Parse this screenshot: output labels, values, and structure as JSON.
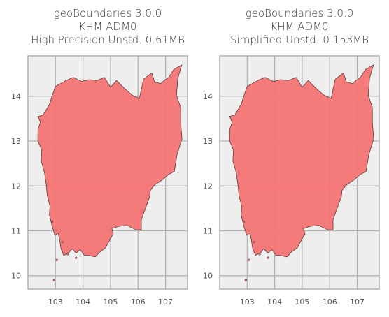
{
  "figure": {
    "panels": [
      {
        "title_lines": [
          "geoBoundaries 3.0.0",
          "KHM ADM0",
          "High Precision Unstd. 0.61MB"
        ],
        "xticks": [
          "103",
          "104",
          "105",
          "106",
          "107"
        ],
        "yticks": [
          "14",
          "13",
          "12",
          "11",
          "10"
        ]
      },
      {
        "title_lines": [
          "geoBoundaries 3.0.0",
          "KHM ADM0",
          "Simplified Unstd. 0.153MB"
        ],
        "xticks": [
          "103",
          "104",
          "105",
          "106",
          "107"
        ],
        "yticks": [
          "14",
          "13",
          "12",
          "11",
          "10"
        ]
      }
    ]
  },
  "colors": {
    "plot_background": "#eeeeee",
    "grid": "#b0b0b0",
    "frame": "#b0b0b0",
    "country_fill": "#f47373",
    "country_edge": "#5a3a3a",
    "title_text": "#3a3a3a",
    "tick_text": "#555555"
  },
  "chart_data": [
    {
      "type": "map",
      "title": "geoBoundaries 3.0.0 KHM ADM0 High Precision Unstd. 0.61MB",
      "xlim": [
        102.0,
        107.8
      ],
      "ylim": [
        9.7,
        14.9
      ],
      "x_ticks": [
        103,
        104,
        105,
        106,
        107
      ],
      "y_ticks": [
        10,
        11,
        12,
        13,
        14
      ],
      "grid": true,
      "series": [
        {
          "name": "KHM ADM0",
          "kind": "polygon",
          "mainland_lonlat": [
            [
              102.36,
              13.55
            ],
            [
              102.45,
              13.42
            ],
            [
              102.36,
              13.25
            ],
            [
              102.36,
              13.0
            ],
            [
              102.5,
              12.8
            ],
            [
              102.48,
              12.55
            ],
            [
              102.6,
              12.3
            ],
            [
              102.67,
              12.0
            ],
            [
              102.7,
              11.8
            ],
            [
              102.8,
              11.55
            ],
            [
              102.78,
              11.35
            ],
            [
              102.88,
              11.1
            ],
            [
              102.98,
              10.9
            ],
            [
              103.1,
              10.95
            ],
            [
              103.15,
              10.8
            ],
            [
              103.2,
              10.6
            ],
            [
              103.3,
              10.45
            ],
            [
              103.5,
              10.52
            ],
            [
              103.6,
              10.6
            ],
            [
              103.75,
              10.5
            ],
            [
              103.9,
              10.58
            ],
            [
              104.05,
              10.45
            ],
            [
              104.2,
              10.45
            ],
            [
              104.45,
              10.42
            ],
            [
              104.6,
              10.52
            ],
            [
              104.82,
              10.62
            ],
            [
              104.98,
              10.8
            ],
            [
              105.1,
              10.93
            ],
            [
              105.05,
              11.05
            ],
            [
              105.3,
              11.1
            ],
            [
              105.6,
              11.12
            ],
            [
              105.93,
              11.02
            ],
            [
              106.12,
              11.02
            ],
            [
              106.12,
              11.25
            ],
            [
              106.2,
              11.38
            ],
            [
              106.3,
              11.55
            ],
            [
              106.42,
              11.75
            ],
            [
              106.45,
              11.9
            ],
            [
              106.6,
              12.02
            ],
            [
              106.85,
              12.12
            ],
            [
              107.1,
              12.25
            ],
            [
              107.32,
              12.32
            ],
            [
              107.42,
              12.7
            ],
            [
              107.6,
              13.05
            ],
            [
              107.55,
              13.4
            ],
            [
              107.55,
              13.75
            ],
            [
              107.4,
              14.02
            ],
            [
              107.45,
              14.4
            ],
            [
              107.55,
              14.62
            ],
            [
              107.6,
              14.7
            ],
            [
              107.3,
              14.6
            ],
            [
              107.12,
              14.42
            ],
            [
              106.95,
              14.35
            ],
            [
              106.82,
              14.28
            ],
            [
              106.6,
              14.32
            ],
            [
              106.5,
              14.52
            ],
            [
              106.35,
              14.45
            ],
            [
              106.2,
              14.38
            ],
            [
              106.05,
              13.95
            ],
            [
              105.8,
              14.02
            ],
            [
              105.55,
              14.15
            ],
            [
              105.22,
              14.35
            ],
            [
              105.0,
              14.2
            ],
            [
              104.78,
              14.42
            ],
            [
              104.5,
              14.35
            ],
            [
              104.22,
              14.37
            ],
            [
              103.95,
              14.33
            ],
            [
              103.65,
              14.42
            ],
            [
              103.38,
              14.35
            ],
            [
              103.0,
              14.22
            ],
            [
              102.9,
              14.05
            ],
            [
              102.78,
              13.82
            ],
            [
              102.55,
              13.58
            ]
          ],
          "islands_lonlat": [
            [
              103.05,
              10.35
            ],
            [
              102.95,
              9.9
            ],
            [
              103.45,
              10.48
            ],
            [
              103.25,
              10.75
            ],
            [
              103.75,
              10.4
            ],
            [
              102.88,
              11.2
            ]
          ]
        }
      ]
    },
    {
      "type": "map",
      "title": "geoBoundaries 3.0.0 KHM ADM0 Simplified Unstd. 0.153MB",
      "xlim": [
        102.0,
        107.8
      ],
      "ylim": [
        9.7,
        14.9
      ],
      "x_ticks": [
        103,
        104,
        105,
        106,
        107
      ],
      "y_ticks": [
        10,
        11,
        12,
        13,
        14
      ],
      "grid": true,
      "series": [
        {
          "name": "KHM ADM0",
          "kind": "polygon",
          "mainland_lonlat": [
            [
              102.36,
              13.55
            ],
            [
              102.45,
              13.42
            ],
            [
              102.36,
              13.25
            ],
            [
              102.36,
              13.0
            ],
            [
              102.5,
              12.8
            ],
            [
              102.48,
              12.55
            ],
            [
              102.6,
              12.3
            ],
            [
              102.67,
              12.0
            ],
            [
              102.7,
              11.8
            ],
            [
              102.8,
              11.55
            ],
            [
              102.78,
              11.35
            ],
            [
              102.88,
              11.1
            ],
            [
              102.98,
              10.9
            ],
            [
              103.1,
              10.95
            ],
            [
              103.15,
              10.8
            ],
            [
              103.2,
              10.6
            ],
            [
              103.3,
              10.45
            ],
            [
              103.5,
              10.52
            ],
            [
              103.6,
              10.6
            ],
            [
              103.75,
              10.5
            ],
            [
              103.9,
              10.58
            ],
            [
              104.05,
              10.45
            ],
            [
              104.2,
              10.45
            ],
            [
              104.45,
              10.42
            ],
            [
              104.6,
              10.52
            ],
            [
              104.82,
              10.62
            ],
            [
              104.98,
              10.8
            ],
            [
              105.1,
              10.93
            ],
            [
              105.05,
              11.05
            ],
            [
              105.3,
              11.1
            ],
            [
              105.6,
              11.12
            ],
            [
              105.93,
              11.02
            ],
            [
              106.12,
              11.02
            ],
            [
              106.12,
              11.25
            ],
            [
              106.2,
              11.38
            ],
            [
              106.3,
              11.55
            ],
            [
              106.42,
              11.75
            ],
            [
              106.45,
              11.9
            ],
            [
              106.6,
              12.02
            ],
            [
              106.85,
              12.12
            ],
            [
              107.1,
              12.25
            ],
            [
              107.32,
              12.32
            ],
            [
              107.42,
              12.7
            ],
            [
              107.6,
              13.05
            ],
            [
              107.55,
              13.4
            ],
            [
              107.55,
              13.75
            ],
            [
              107.4,
              14.02
            ],
            [
              107.45,
              14.4
            ],
            [
              107.55,
              14.62
            ],
            [
              107.6,
              14.7
            ],
            [
              107.3,
              14.6
            ],
            [
              107.12,
              14.42
            ],
            [
              106.95,
              14.35
            ],
            [
              106.82,
              14.28
            ],
            [
              106.6,
              14.32
            ],
            [
              106.5,
              14.52
            ],
            [
              106.35,
              14.45
            ],
            [
              106.2,
              14.38
            ],
            [
              106.05,
              13.95
            ],
            [
              105.8,
              14.02
            ],
            [
              105.55,
              14.15
            ],
            [
              105.22,
              14.35
            ],
            [
              105.0,
              14.2
            ],
            [
              104.78,
              14.42
            ],
            [
              104.5,
              14.35
            ],
            [
              104.22,
              14.37
            ],
            [
              103.95,
              14.33
            ],
            [
              103.65,
              14.42
            ],
            [
              103.38,
              14.35
            ],
            [
              103.0,
              14.22
            ],
            [
              102.9,
              14.05
            ],
            [
              102.78,
              13.82
            ],
            [
              102.55,
              13.58
            ]
          ],
          "islands_lonlat": [
            [
              103.05,
              10.35
            ],
            [
              102.95,
              9.9
            ],
            [
              103.45,
              10.48
            ],
            [
              103.25,
              10.75
            ],
            [
              103.75,
              10.4
            ],
            [
              102.88,
              11.2
            ]
          ]
        }
      ]
    }
  ]
}
